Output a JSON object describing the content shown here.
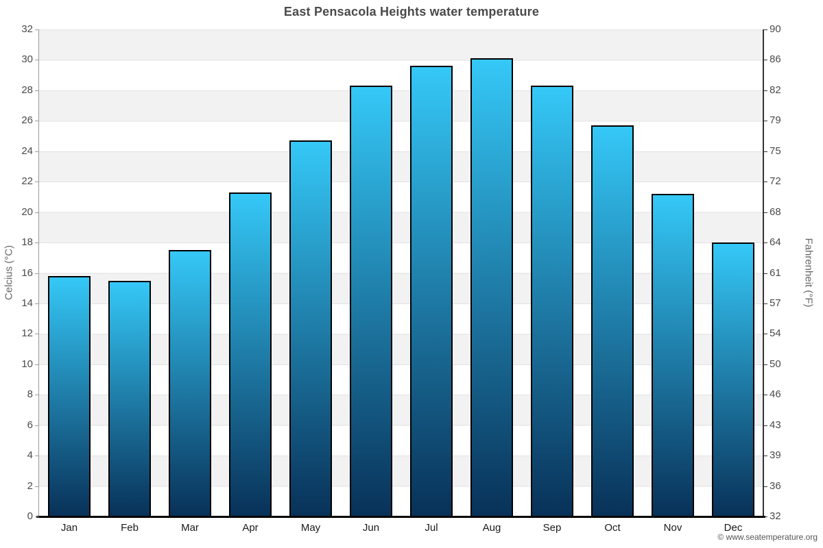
{
  "title": "East Pensacola Heights water temperature",
  "footer": {
    "credit": "© www.seatemperature.org"
  },
  "chart_data": {
    "type": "bar",
    "title": "East Pensacola Heights water temperature",
    "categories": [
      "Jan",
      "Feb",
      "Mar",
      "Apr",
      "May",
      "Jun",
      "Jul",
      "Aug",
      "Sep",
      "Oct",
      "Nov",
      "Dec"
    ],
    "values": [
      15.8,
      15.5,
      17.5,
      21.3,
      24.7,
      28.3,
      29.6,
      30.1,
      28.3,
      25.7,
      21.2,
      18.0
    ],
    "unit": "°C",
    "ylabel_left": "Celcius (°C)",
    "ylabel_right": "Fahrenheit (°F)",
    "ylim_left": [
      0,
      32
    ],
    "ylim_right": [
      32,
      90
    ],
    "yticks_left": [
      0,
      2,
      4,
      6,
      8,
      10,
      12,
      14,
      16,
      18,
      20,
      22,
      24,
      26,
      28,
      30,
      32
    ],
    "yticks_right": [
      32,
      36,
      39,
      43,
      46,
      50,
      54,
      57,
      61,
      64,
      68,
      72,
      75,
      79,
      82,
      86,
      90
    ],
    "legend": "none",
    "grid": "alternating-bands",
    "colors": {
      "bar_top": "#35c8f7",
      "bar_bottom": "#083158",
      "bar_border": "#000000",
      "band": "#f2f2f2",
      "band_alt": "#ffffff",
      "gridline": "#e2e2e2",
      "axis_left_line": "#9a9a9a",
      "axis_right_line": "#333333",
      "axis_bottom_line": "#000000",
      "title_text": "#4a4a4a",
      "tick_text": "#4a4a4a",
      "month_text": "#1a1a1a",
      "axis_title_text": "#666666",
      "footer_text": "#555555"
    }
  }
}
